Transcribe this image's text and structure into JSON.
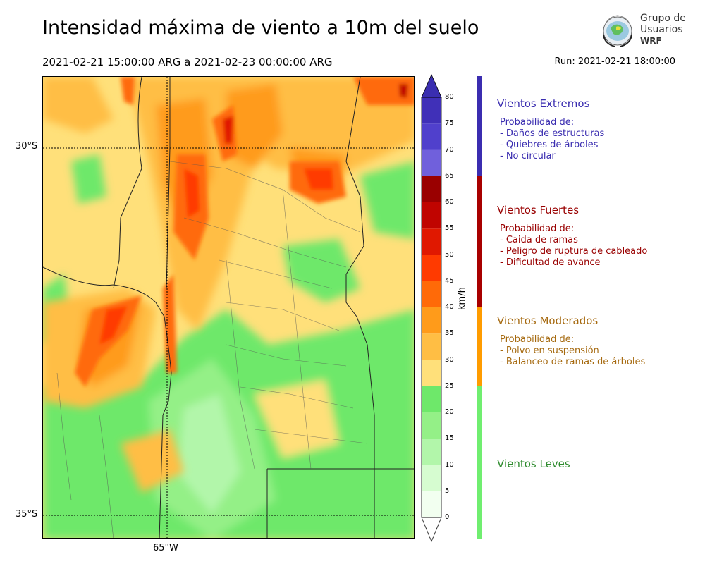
{
  "title": "Intensidad máxima de viento a 10m del suelo",
  "subtitle": "2021-02-21 15:00:00 ARG  a  2021-02-23 00:00:00 ARG",
  "run": "Run: 2021-02-21 18:00:00",
  "logo": {
    "line1": "Grupo de",
    "line2": "Usuarios",
    "line3": "WRF"
  },
  "map": {
    "lat_labels": [
      "30°S",
      "35°S"
    ],
    "lon_labels": [
      "65°W"
    ]
  },
  "colorbar": {
    "unit": "km/h",
    "ticks": [
      "80",
      "75",
      "70",
      "65",
      "60",
      "55",
      "50",
      "45",
      "40",
      "35",
      "30",
      "25",
      "20",
      "15",
      "10",
      "5",
      "0"
    ],
    "bins": [
      {
        "from": 0,
        "to": 5,
        "color": "#f2fff0"
      },
      {
        "from": 5,
        "to": 10,
        "color": "#d6fcd0"
      },
      {
        "from": 10,
        "to": 15,
        "color": "#b2f6aa"
      },
      {
        "from": 15,
        "to": 20,
        "color": "#94f087"
      },
      {
        "from": 20,
        "to": 25,
        "color": "#6ee86a"
      },
      {
        "from": 25,
        "to": 30,
        "color": "#ffe07a"
      },
      {
        "from": 30,
        "to": 35,
        "color": "#ffbe44"
      },
      {
        "from": 35,
        "to": 40,
        "color": "#ff9b1a"
      },
      {
        "from": 40,
        "to": 45,
        "color": "#ff6a08"
      },
      {
        "from": 45,
        "to": 50,
        "color": "#ff3a00"
      },
      {
        "from": 50,
        "to": 55,
        "color": "#e01800"
      },
      {
        "from": 55,
        "to": 60,
        "color": "#c00400"
      },
      {
        "from": 60,
        "to": 65,
        "color": "#9a0000"
      },
      {
        "from": 65,
        "to": 70,
        "color": "#7060dc"
      },
      {
        "from": 70,
        "to": 75,
        "color": "#5040cc"
      },
      {
        "from": 75,
        "to": 80,
        "color": "#4030b8"
      }
    ],
    "over_color": "#3a2eb0"
  },
  "categories": [
    {
      "title": "Vientos Extremos",
      "color": "#3a2db0",
      "bar_color": "#3b2db0",
      "lines": [
        "Probabilidad de:",
        "- Daños de estructuras",
        "- Quiebres de árboles",
        "- No circular"
      ]
    },
    {
      "title": "Vientos Fuertes",
      "color": "#990000",
      "bar_color": "#a80000",
      "lines": [
        "Probabilidad de:",
        "- Caida de ramas",
        "- Peligro de ruptura de cableado",
        "- Dificultad de avance"
      ]
    },
    {
      "title": "Vientos Moderados",
      "color": "#a66a10",
      "bar_color": "#ff9c00",
      "lines": [
        "Probabilidad de:",
        "- Polvo en suspensión",
        "- Balanceo de ramas de árboles"
      ]
    },
    {
      "title": "Vientos Leves",
      "color": "#2e8b2e",
      "bar_color": "#70ee70",
      "lines": []
    }
  ]
}
